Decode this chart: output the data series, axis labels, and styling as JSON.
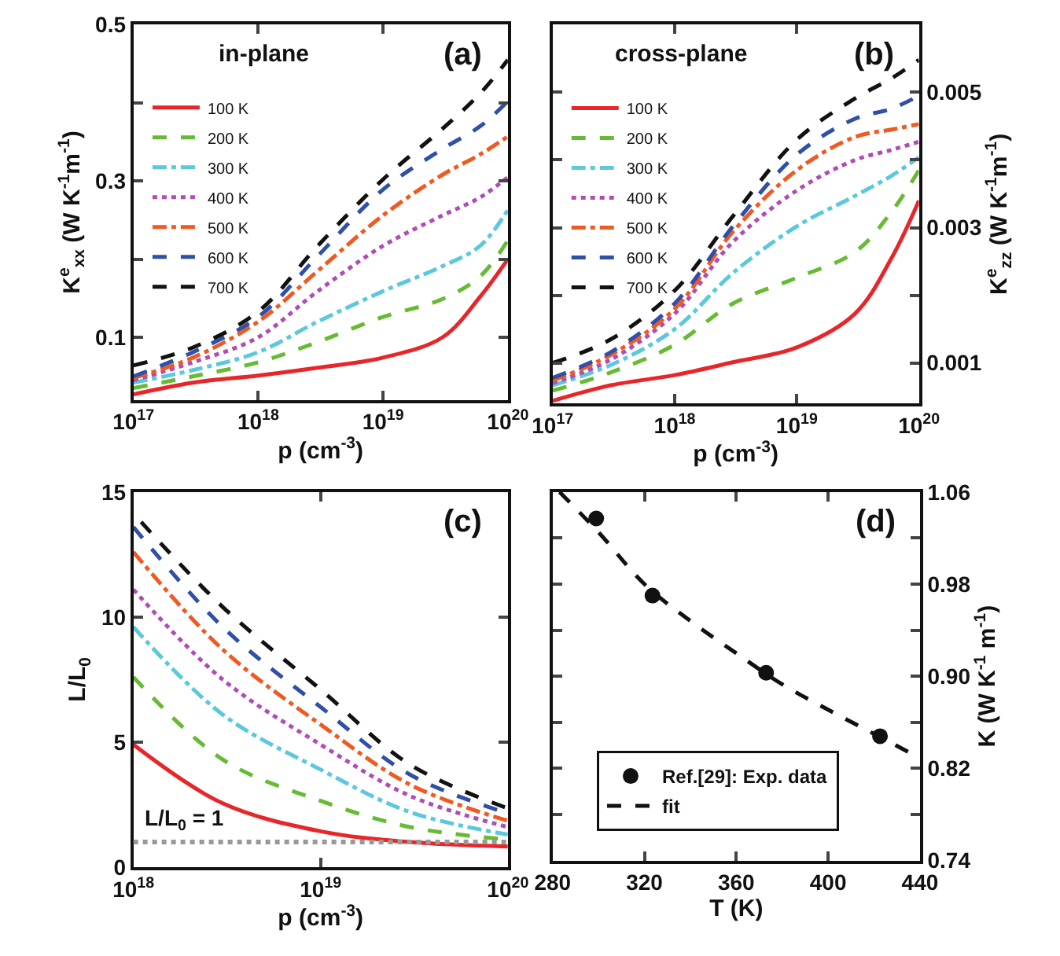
{
  "chart_data": [
    {
      "type": "line",
      "xlabel": "p (cm$^{-3}$)",
      "ylabel": "K$^{e}$$_{xx}$ (W K$^{-1}$m$^{-1}$)",
      "log": "x",
      "legend": "top left",
      "marker": "none",
      "annotations": [
        "in-plane",
        "(a)"
      ],
      "xlim": [
        1e+17,
        1e+20
      ],
      "xticks": [
        {
          "value": 1e+17,
          "label": "10$^{17}$"
        },
        {
          "value": 1e+18,
          "label": "10$^{18}$"
        },
        {
          "value": 1e+19,
          "label": "10$^{19}$"
        },
        {
          "value": 1e+20,
          "label": "10$^{20}$"
        }
      ],
      "ylim": [
        0.02,
        0.5
      ],
      "yticks": [
        0.1,
        {
          "value": 0.2,
          "label": null
        },
        0.3,
        {
          "value": 0.4,
          "label": null
        },
        0.5
      ],
      "x": [
        1e+17,
        3e+17,
        1e+18,
        3e+18,
        1e+19,
        3e+19,
        6e+19,
        1e+20
      ],
      "series": [
        {
          "name": "100 K",
          "color": "#e8262a",
          "line_style": "solid",
          "values": [
            0.027,
            0.042,
            0.051,
            0.061,
            0.074,
            0.1,
            0.152,
            0.2
          ]
        },
        {
          "name": "200 K",
          "color": "#66bb33",
          "line_style": "dashed",
          "values": [
            0.035,
            0.05,
            0.068,
            0.094,
            0.126,
            0.149,
            0.178,
            0.224
          ]
        },
        {
          "name": "300 K",
          "color": "#5bc8dc",
          "line_style": "dashdot",
          "values": [
            0.042,
            0.058,
            0.081,
            0.12,
            0.159,
            0.191,
            0.217,
            0.263
          ]
        },
        {
          "name": "400 K",
          "color": "#b04bb8",
          "line_style": "dotted",
          "values": [
            0.045,
            0.068,
            0.1,
            0.159,
            0.217,
            0.256,
            0.279,
            0.305
          ]
        },
        {
          "name": "500 K",
          "color": "#f05a22",
          "line_style": "dashdot",
          "values": [
            0.048,
            0.074,
            0.12,
            0.185,
            0.256,
            0.308,
            0.334,
            0.357
          ]
        },
        {
          "name": "600 K",
          "color": "#2f4fa8",
          "line_style": "dashed",
          "values": [
            0.05,
            0.081,
            0.126,
            0.204,
            0.289,
            0.341,
            0.37,
            0.402
          ]
        },
        {
          "name": "700 K",
          "color": "#111111",
          "line_style": "dashed",
          "values": [
            0.064,
            0.087,
            0.133,
            0.217,
            0.302,
            0.367,
            0.412,
            0.455
          ]
        }
      ]
    },
    {
      "type": "line",
      "xlabel": "p (cm$^{-3}$)",
      "y2label": "K$^{e}$$_{zz}$ (W K$^{-1}$m$^{-1}$)",
      "log": "x",
      "legend": "top left",
      "marker": "none",
      "annotations": [
        "cross-plane",
        "(b)"
      ],
      "xlim": [
        1e+17,
        1e+20
      ],
      "xticks": [
        {
          "value": 1e+17,
          "label": "10$^{17}$"
        },
        {
          "value": 1e+18,
          "label": "10$^{18}$"
        },
        {
          "value": 1e+19,
          "label": "10$^{19}$"
        },
        {
          "value": 1e+20,
          "label": "10$^{20}$"
        }
      ],
      "y2lim": [
        0.0004,
        0.006
      ],
      "y2ticks": [
        0.001,
        {
          "value": 0.002,
          "label": null
        },
        0.003,
        {
          "value": 0.004,
          "label": null
        },
        0.005,
        {
          "value": 0.006,
          "label": null
        }
      ],
      "x": [
        1e+17,
        3e+17,
        1e+18,
        3e+18,
        1e+19,
        3e+19,
        6e+19,
        1e+20
      ],
      "series": [
        {
          "name": "100 K",
          "color": "#e8262a",
          "line_style": "solid",
          "axis": "y2",
          "values": [
            0.00044,
            0.00067,
            0.00082,
            0.00101,
            0.00123,
            0.00173,
            0.00256,
            0.0034
          ]
        },
        {
          "name": "200 K",
          "color": "#66bb33",
          "line_style": "dashed",
          "axis": "y2",
          "values": [
            0.00059,
            0.00086,
            0.00127,
            0.00188,
            0.00226,
            0.00264,
            0.00324,
            0.00385
          ]
        },
        {
          "name": "300 K",
          "color": "#5bc8dc",
          "line_style": "dashdot",
          "axis": "y2",
          "values": [
            0.00067,
            0.00097,
            0.0015,
            0.00233,
            0.00302,
            0.00347,
            0.00377,
            0.00404
          ]
        },
        {
          "name": "400 K",
          "color": "#b04bb8",
          "line_style": "dotted",
          "axis": "y2",
          "values": [
            0.0007,
            0.00105,
            0.00173,
            0.00279,
            0.00355,
            0.004,
            0.00415,
            0.00427
          ]
        },
        {
          "name": "500 K",
          "color": "#f05a22",
          "line_style": "dashdot",
          "axis": "y2",
          "values": [
            0.00074,
            0.00112,
            0.0018,
            0.00294,
            0.00385,
            0.00434,
            0.00445,
            0.00453
          ]
        },
        {
          "name": "600 K",
          "color": "#2f4fa8",
          "line_style": "dashed",
          "axis": "y2",
          "values": [
            0.00078,
            0.00116,
            0.00188,
            0.00302,
            0.00408,
            0.00461,
            0.00476,
            0.00495
          ]
        },
        {
          "name": "700 K",
          "color": "#111111",
          "line_style": "dashed",
          "axis": "y2",
          "values": [
            0.001,
            0.00135,
            0.00207,
            0.00317,
            0.0043,
            0.00491,
            0.00521,
            0.00548
          ]
        }
      ]
    },
    {
      "type": "line",
      "xlabel": "p (cm$^{-3}$)",
      "ylabel": "L/L$_{0}$",
      "log": "x",
      "marker": "none",
      "annotations": [
        "(c)"
      ],
      "ref_lines": [
        {
          "axis": "y",
          "value": 1,
          "label": "L/L$_{0}$ = 1",
          "color": "#999999",
          "line_style": "dotted"
        }
      ],
      "xlim": [
        1e+18,
        1e+20
      ],
      "xticks": [
        {
          "value": 1e+18,
          "label": "10$^{18}$"
        },
        {
          "value": 1e+19,
          "label": "10$^{19}$"
        },
        {
          "value": 1e+20,
          "label": "10$^{20}$"
        }
      ],
      "ylim": [
        0,
        15
      ],
      "yticks": [
        0,
        5,
        10,
        15
      ],
      "x": [
        1e+18,
        3e+18,
        1e+19,
        3e+19,
        1e+20
      ],
      "series": [
        {
          "color": "#e8262a",
          "line_style": "solid",
          "values": [
            4.9,
            2.55,
            1.43,
            1.0,
            0.82
          ]
        },
        {
          "color": "#66bb33",
          "line_style": "dashed",
          "values": [
            7.6,
            4.3,
            2.65,
            1.6,
            1.1
          ]
        },
        {
          "color": "#5bc8dc",
          "line_style": "dashdot",
          "values": [
            9.6,
            6.1,
            3.9,
            2.2,
            1.3
          ]
        },
        {
          "color": "#b04bb8",
          "line_style": "dotted",
          "values": [
            11.1,
            7.5,
            4.9,
            2.85,
            1.6
          ]
        },
        {
          "color": "#f05a22",
          "line_style": "dashdot",
          "values": [
            12.6,
            8.7,
            5.7,
            3.3,
            1.85
          ]
        },
        {
          "color": "#2f4fa8",
          "line_style": "dashed",
          "values": [
            13.6,
            9.6,
            6.4,
            3.7,
            2.15
          ]
        },
        {
          "color": "#111111",
          "line_style": "dashed",
          "x": [
            1.1e+18,
            3e+18,
            1e+19,
            3e+19,
            1e+20
          ],
          "values": [
            13.8,
            10.4,
            7.1,
            4.1,
            2.35
          ]
        }
      ]
    },
    {
      "type": "scatter",
      "xlabel": "T (K)",
      "y2label": "K (W K$^{-1}$ m$^{-1}$)",
      "legend": "bottom",
      "annotations": [
        "(d)"
      ],
      "xlim": [
        280,
        440
      ],
      "xticks": [
        280,
        320,
        360,
        400,
        440
      ],
      "y2lim": [
        0.74,
        1.06
      ],
      "y2ticks": [
        0.74,
        {
          "value": 0.78,
          "label": null
        },
        0.82,
        {
          "value": 0.86,
          "label": null
        },
        {
          "value": 0.9,
          "label": "0.90"
        },
        {
          "value": 0.94,
          "label": null
        },
        0.98,
        {
          "value": 1.02,
          "label": null
        },
        1.06
      ],
      "series": [
        {
          "name": "Ref.[29]: Exp. data",
          "type": "scatter",
          "marker": "circle",
          "color": "#111111",
          "axis": "y2",
          "x": [
            299,
            323.5,
            373,
            422.6
          ],
          "values": [
            1.037,
            0.97,
            0.903,
            0.848
          ]
        },
        {
          "name": "fit",
          "type": "line",
          "marker": "none",
          "line_style": "dashed",
          "color": "#111111",
          "axis": "y2",
          "x": [
            283,
            300,
            320,
            340,
            360,
            380,
            400,
            420,
            440
          ],
          "values": [
            1.06,
            1.025,
            0.98,
            0.948,
            0.92,
            0.893,
            0.871,
            0.85,
            0.829
          ]
        }
      ]
    }
  ]
}
